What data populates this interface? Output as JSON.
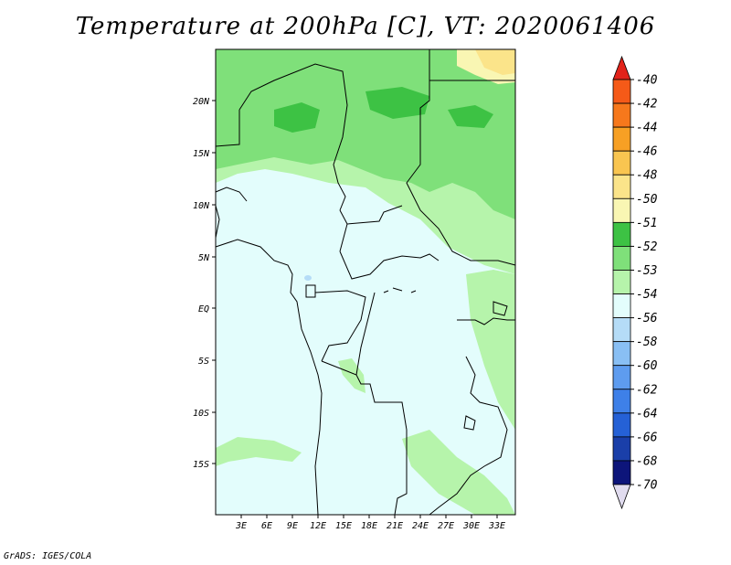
{
  "title": "Temperature at 200hPa [C], VT: 2020061406",
  "map": {
    "lat_labels": [
      "20N",
      "15N",
      "10N",
      "5N",
      "EQ",
      "5S",
      "10S",
      "15S"
    ],
    "lon_labels": [
      "3E",
      "6E",
      "9E",
      "12E",
      "15E",
      "18E",
      "21E",
      "24E",
      "27E",
      "30E",
      "33E"
    ]
  },
  "colorbar": {
    "levels": [
      {
        "label": "-40",
        "color": "#f5362a"
      },
      {
        "label": "-42",
        "color": "#f55a18"
      },
      {
        "label": "-44",
        "color": "#f6781c"
      },
      {
        "label": "-46",
        "color": "#f7a024"
      },
      {
        "label": "-48",
        "color": "#f9c550"
      },
      {
        "label": "-50",
        "color": "#fbe48a"
      },
      {
        "label": "-51",
        "color": "#f9f6b3"
      },
      {
        "label": "-52",
        "color": "#3dc244"
      },
      {
        "label": "-53",
        "color": "#7fe07a"
      },
      {
        "label": "-54",
        "color": "#b6f4ab"
      },
      {
        "label": "-56",
        "color": "#e3fdfc"
      },
      {
        "label": "-58",
        "color": "#b5dcf7"
      },
      {
        "label": "-60",
        "color": "#89bff4"
      },
      {
        "label": "-62",
        "color": "#5e9cef"
      },
      {
        "label": "-64",
        "color": "#3e80e8"
      },
      {
        "label": "-66",
        "color": "#2561d6"
      },
      {
        "label": "-68",
        "color": "#1a3fa9"
      },
      {
        "label": "-70",
        "color": "#0d157a"
      }
    ],
    "top_arrow_color": "#e2231a",
    "bottom_arrow_color": "#e1dcef"
  },
  "credit": "GrADS: IGES/COLA"
}
